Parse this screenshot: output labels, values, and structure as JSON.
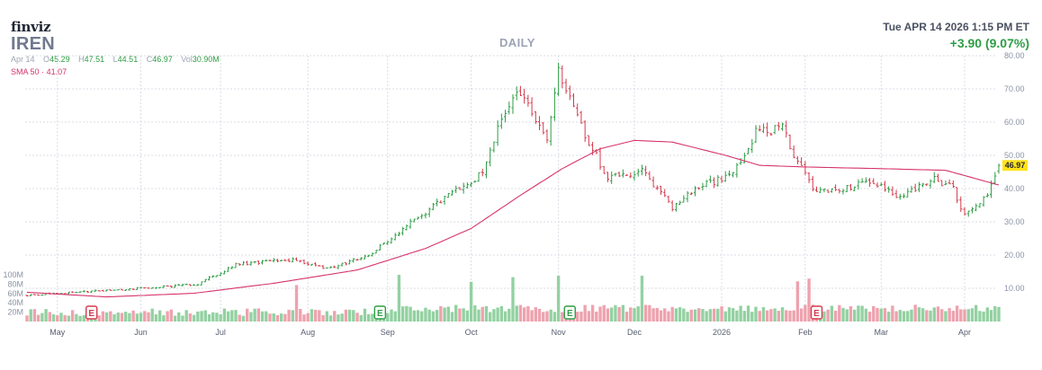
{
  "header": {
    "logo": "finviz",
    "ticker": "IREN",
    "period": "DAILY",
    "datetime": "Tue APR 14 2026 1:15 PM ET",
    "change": "+3.90 (9.07%)"
  },
  "ohlc": {
    "date": "Apr 14",
    "open_label": "O",
    "open": "45.29",
    "high_label": "H",
    "high": "47.51",
    "low_label": "L",
    "low": "44.51",
    "close_label": "C",
    "close": "46.97",
    "vol_label": "Vol",
    "vol": "30.90M"
  },
  "sma": {
    "label": "SMA 50",
    "sep": "·",
    "value": "41.07"
  },
  "colors": {
    "up": "#2e9d45",
    "down": "#d43a4c",
    "sma": "#d6336c",
    "vol_up": "#93d1a1",
    "vol_down": "#eea2ae",
    "price_badge": "#ffe21a"
  },
  "chart_data": {
    "type": "candlestick",
    "ylim": [
      20,
      80
    ],
    "yticks": [
      "80.00",
      "70.00",
      "60.00",
      "50.00",
      "40.00",
      "30.00",
      "20.00",
      "10.00"
    ],
    "volume_ticks": [
      "100M",
      "80M",
      "60M",
      "40M",
      "20M"
    ],
    "last_price": "46.97",
    "months": [
      "May",
      "Jun",
      "Jul",
      "Aug",
      "Sep",
      "Oct",
      "Nov",
      "Dec",
      "2026",
      "Feb",
      "Mar",
      "Apr"
    ],
    "close_anchors": [
      {
        "date": "2025-04-21",
        "close": 7.9
      },
      {
        "date": "2025-05-01",
        "close": 8.5
      },
      {
        "date": "2025-06-02",
        "close": 10.0
      },
      {
        "date": "2025-06-23",
        "close": 11.2
      },
      {
        "date": "2025-07-07",
        "close": 17.2
      },
      {
        "date": "2025-07-28",
        "close": 18.6
      },
      {
        "date": "2025-08-08",
        "close": 15.8
      },
      {
        "date": "2025-08-25",
        "close": 20.0
      },
      {
        "date": "2025-09-04",
        "close": 27.0
      },
      {
        "date": "2025-09-22",
        "close": 37.0
      },
      {
        "date": "2025-10-06",
        "close": 44.5
      },
      {
        "date": "2025-10-14",
        "close": 64.0
      },
      {
        "date": "2025-10-20",
        "close": 69.0
      },
      {
        "date": "2025-10-29",
        "close": 54.0
      },
      {
        "date": "2025-11-03",
        "close": 75.0
      },
      {
        "date": "2025-11-10",
        "close": 61.0
      },
      {
        "date": "2025-11-20",
        "close": 43.0
      },
      {
        "date": "2025-12-03",
        "close": 45.0
      },
      {
        "date": "2025-12-15",
        "close": 34.5
      },
      {
        "date": "2025-12-24",
        "close": 40.5
      },
      {
        "date": "2026-01-06",
        "close": 44.0
      },
      {
        "date": "2026-01-14",
        "close": 57.0
      },
      {
        "date": "2026-01-23",
        "close": 58.0
      },
      {
        "date": "2026-01-29",
        "close": 48.0
      },
      {
        "date": "2026-02-05",
        "close": 39.0
      },
      {
        "date": "2026-02-26",
        "close": 42.0
      },
      {
        "date": "2026-03-09",
        "close": 37.0
      },
      {
        "date": "2026-03-20",
        "close": 43.0
      },
      {
        "date": "2026-03-27",
        "close": 40.0
      },
      {
        "date": "2026-04-01",
        "close": 32.0
      },
      {
        "date": "2026-04-09",
        "close": 38.0
      },
      {
        "date": "2026-04-13",
        "close": 43.07
      },
      {
        "date": "2026-04-14",
        "close": 46.97
      }
    ],
    "sma50_anchors": [
      {
        "date": "2025-04-21",
        "value": 8.8
      },
      {
        "date": "2025-05-20",
        "value": 7.4
      },
      {
        "date": "2025-06-20",
        "value": 8.5
      },
      {
        "date": "2025-07-20",
        "value": 11.5
      },
      {
        "date": "2025-08-20",
        "value": 15.5
      },
      {
        "date": "2025-09-15",
        "value": 22.0
      },
      {
        "date": "2025-10-01",
        "value": 28.0
      },
      {
        "date": "2025-10-20",
        "value": 38.0
      },
      {
        "date": "2025-11-04",
        "value": 46.0
      },
      {
        "date": "2025-11-18",
        "value": 52.0
      },
      {
        "date": "2025-12-01",
        "value": 54.5
      },
      {
        "date": "2025-12-15",
        "value": 54.0
      },
      {
        "date": "2026-01-02",
        "value": 50.0
      },
      {
        "date": "2026-01-15",
        "value": 47.0
      },
      {
        "date": "2026-02-01",
        "value": 46.5
      },
      {
        "date": "2026-03-01",
        "value": 46.0
      },
      {
        "date": "2026-03-25",
        "value": 45.5
      },
      {
        "date": "2026-04-14",
        "value": 41.07
      }
    ],
    "volume_spikes": [
      {
        "date": "2025-07-29",
        "value": 78
      },
      {
        "date": "2025-09-04",
        "value": 100
      },
      {
        "date": "2025-10-01",
        "value": 85
      },
      {
        "date": "2025-10-16",
        "value": 95
      },
      {
        "date": "2025-11-03",
        "value": 98
      },
      {
        "date": "2025-12-03",
        "value": 98
      },
      {
        "date": "2026-01-29",
        "value": 86
      },
      {
        "date": "2026-02-03",
        "value": 92
      }
    ],
    "earnings_markers": [
      {
        "date": "2025-05-14",
        "label": "E",
        "kind": "down"
      },
      {
        "date": "2025-08-28",
        "label": "E",
        "kind": "up"
      },
      {
        "date": "2025-11-06",
        "label": "E",
        "kind": "up"
      },
      {
        "date": "2026-02-05",
        "label": "E",
        "kind": "down"
      }
    ]
  }
}
